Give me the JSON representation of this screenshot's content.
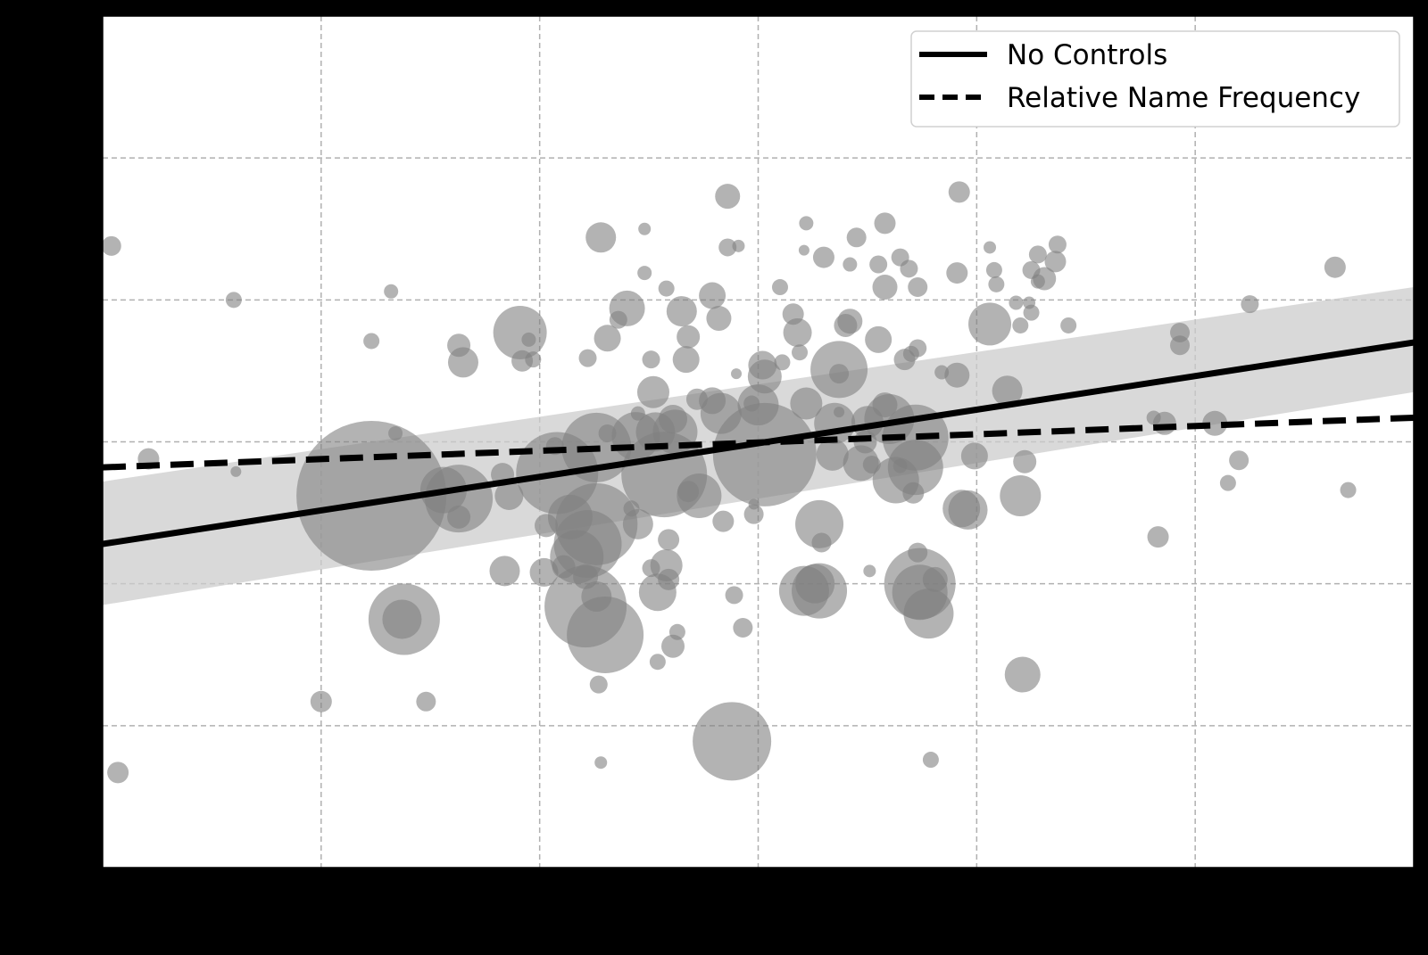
{
  "chart_data": {
    "type": "scatter",
    "title": "",
    "xlabel": "",
    "ylabel": "",
    "xlim": [
      -3,
      3
    ],
    "ylim": [
      -3,
      3
    ],
    "xticks": [
      -2,
      -1,
      0,
      1,
      2
    ],
    "yticks": [
      -2,
      -1,
      0,
      1,
      2
    ],
    "grid": true,
    "legend": {
      "position": "top-right",
      "entries": [
        {
          "label": "No Controls",
          "style": "solid"
        },
        {
          "label": "Relative Name Frequency",
          "style": "dashed"
        }
      ]
    },
    "fit_lines": [
      {
        "name": "No Controls",
        "style": "solid",
        "color": "#000000",
        "y_at_xmin": -0.72,
        "y_at_xmax": 0.7
      },
      {
        "name": "Relative Name Frequency",
        "style": "dashed",
        "color": "#000000",
        "y_at_xmin": -0.18,
        "y_at_xmax": 0.17
      }
    ],
    "confidence_band": {
      "color": "#cccccc",
      "lower_at_xmin": -1.15,
      "upper_at_xmin": -0.28,
      "lower_at_xmax": 0.35,
      "upper_at_xmax": 1.09
    },
    "point_color": "#808080",
    "point_alpha": 0.6,
    "points": [
      {
        "x": -2.96,
        "y": 1.38,
        "size": 11
      },
      {
        "x": -2.93,
        "y": -2.33,
        "size": 12
      },
      {
        "x": -2.79,
        "y": -0.12,
        "size": 12
      },
      {
        "x": -2.39,
        "y": -0.21,
        "size": 6
      },
      {
        "x": -2.4,
        "y": 1.0,
        "size": 9
      },
      {
        "x": -1.77,
        "y": 0.71,
        "size": 9
      },
      {
        "x": -1.68,
        "y": 1.06,
        "size": 8
      },
      {
        "x": -1.66,
        "y": 0.06,
        "size": 8
      },
      {
        "x": -1.77,
        "y": -0.38,
        "size": 84
      },
      {
        "x": -2.0,
        "y": -1.83,
        "size": 12
      },
      {
        "x": -1.52,
        "y": -1.83,
        "size": 11
      },
      {
        "x": -1.62,
        "y": -1.25,
        "size": 40
      },
      {
        "x": -1.63,
        "y": -1.25,
        "size": 22
      },
      {
        "x": -1.37,
        "y": 0.68,
        "size": 13
      },
      {
        "x": -1.35,
        "y": 0.56,
        "size": 17
      },
      {
        "x": -1.37,
        "y": -0.4,
        "size": 38
      },
      {
        "x": -1.44,
        "y": -0.34,
        "size": 26
      },
      {
        "x": -1.37,
        "y": -0.53,
        "size": 13
      },
      {
        "x": -1.17,
        "y": -0.23,
        "size": 13
      },
      {
        "x": -1.14,
        "y": -0.38,
        "size": 16
      },
      {
        "x": -1.16,
        "y": -0.91,
        "size": 17
      },
      {
        "x": -1.08,
        "y": 0.57,
        "size": 12
      },
      {
        "x": -1.03,
        "y": 0.58,
        "size": 9
      },
      {
        "x": -1.05,
        "y": 0.72,
        "size": 8
      },
      {
        "x": -1.09,
        "y": 0.77,
        "size": 30
      },
      {
        "x": -0.97,
        "y": -0.59,
        "size": 13
      },
      {
        "x": -0.98,
        "y": -0.92,
        "size": 16
      },
      {
        "x": -0.93,
        "y": -0.03,
        "size": 10
      },
      {
        "x": -0.92,
        "y": -0.22,
        "size": 46
      },
      {
        "x": -0.89,
        "y": -0.88,
        "size": 13
      },
      {
        "x": -0.86,
        "y": -0.53,
        "size": 25
      },
      {
        "x": -0.83,
        "y": -0.81,
        "size": 30
      },
      {
        "x": -0.79,
        "y": -1.16,
        "size": 46
      },
      {
        "x": -0.72,
        "y": 1.44,
        "size": 17
      },
      {
        "x": -0.78,
        "y": 0.59,
        "size": 10
      },
      {
        "x": -0.69,
        "y": 0.73,
        "size": 15
      },
      {
        "x": -0.74,
        "y": -0.04,
        "size": 39
      },
      {
        "x": -0.74,
        "y": -0.58,
        "size": 46
      },
      {
        "x": -0.78,
        "y": -0.72,
        "size": 38
      },
      {
        "x": -0.79,
        "y": -0.95,
        "size": 14
      },
      {
        "x": -0.74,
        "y": -1.09,
        "size": 17
      },
      {
        "x": -0.7,
        "y": -1.36,
        "size": 43
      },
      {
        "x": -0.73,
        "y": -1.71,
        "size": 10
      },
      {
        "x": -0.72,
        "y": -2.26,
        "size": 7
      },
      {
        "x": -0.69,
        "y": 0.06,
        "size": 10
      },
      {
        "x": -0.64,
        "y": 0.86,
        "size": 10
      },
      {
        "x": -0.6,
        "y": 0.94,
        "size": 20
      },
      {
        "x": -0.56,
        "y": 0.04,
        "size": 27
      },
      {
        "x": -0.55,
        "y": -0.58,
        "size": 17
      },
      {
        "x": -0.58,
        "y": -0.47,
        "size": 9
      },
      {
        "x": -0.52,
        "y": 1.5,
        "size": 7
      },
      {
        "x": -0.52,
        "y": 1.19,
        "size": 8
      },
      {
        "x": -0.49,
        "y": 0.58,
        "size": 10
      },
      {
        "x": -0.48,
        "y": 0.35,
        "size": 18
      },
      {
        "x": -0.55,
        "y": 0.2,
        "size": 8
      },
      {
        "x": -0.47,
        "y": 0.07,
        "size": 22
      },
      {
        "x": -0.49,
        "y": -0.89,
        "size": 10
      },
      {
        "x": -0.46,
        "y": -1.06,
        "size": 21
      },
      {
        "x": -0.43,
        "y": -0.23,
        "size": 48
      },
      {
        "x": -0.46,
        "y": -1.55,
        "size": 9
      },
      {
        "x": -0.42,
        "y": 1.08,
        "size": 9
      },
      {
        "x": -0.39,
        "y": 0.16,
        "size": 16
      },
      {
        "x": -0.38,
        "y": 0.07,
        "size": 25
      },
      {
        "x": -0.42,
        "y": -0.87,
        "size": 18
      },
      {
        "x": -0.41,
        "y": -0.69,
        "size": 12
      },
      {
        "x": -0.41,
        "y": -0.97,
        "size": 12
      },
      {
        "x": -0.39,
        "y": -1.44,
        "size": 13
      },
      {
        "x": -0.35,
        "y": 0.92,
        "size": 17
      },
      {
        "x": -0.32,
        "y": 0.74,
        "size": 13
      },
      {
        "x": -0.33,
        "y": 0.58,
        "size": 15
      },
      {
        "x": -0.28,
        "y": 0.3,
        "size": 12
      },
      {
        "x": -0.32,
        "y": -0.35,
        "size": 12
      },
      {
        "x": -0.27,
        "y": -0.38,
        "size": 25
      },
      {
        "x": -0.37,
        "y": -1.34,
        "size": 9
      },
      {
        "x": -0.21,
        "y": 1.03,
        "size": 15
      },
      {
        "x": -0.21,
        "y": 0.29,
        "size": 15
      },
      {
        "x": -0.18,
        "y": 0.87,
        "size": 14
      },
      {
        "x": -0.17,
        "y": 0.2,
        "size": 23
      },
      {
        "x": -0.14,
        "y": 1.73,
        "size": 14
      },
      {
        "x": -0.14,
        "y": 1.37,
        "size": 10
      },
      {
        "x": -0.16,
        "y": -0.56,
        "size": 12
      },
      {
        "x": -0.12,
        "y": -2.11,
        "size": 44
      },
      {
        "x": -0.1,
        "y": 0.48,
        "size": 6
      },
      {
        "x": -0.09,
        "y": 1.38,
        "size": 7
      },
      {
        "x": -0.11,
        "y": -1.08,
        "size": 10
      },
      {
        "x": -0.07,
        "y": -1.31,
        "size": 11
      },
      {
        "x": 0.0,
        "y": 0.26,
        "size": 23
      },
      {
        "x": 0.02,
        "y": 0.54,
        "size": 16
      },
      {
        "x": 0.03,
        "y": 0.46,
        "size": 19
      },
      {
        "x": 0.03,
        "y": -0.09,
        "size": 58
      },
      {
        "x": -0.03,
        "y": 0.27,
        "size": 9
      },
      {
        "x": -0.02,
        "y": -0.44,
        "size": 6
      },
      {
        "x": -0.02,
        "y": -0.51,
        "size": 11
      },
      {
        "x": 0.1,
        "y": 1.09,
        "size": 9
      },
      {
        "x": 0.11,
        "y": 0.56,
        "size": 9
      },
      {
        "x": 0.16,
        "y": 0.9,
        "size": 12
      },
      {
        "x": 0.19,
        "y": 0.63,
        "size": 9
      },
      {
        "x": 0.21,
        "y": 1.35,
        "size": 6
      },
      {
        "x": 0.22,
        "y": 1.54,
        "size": 8
      },
      {
        "x": 0.18,
        "y": 0.77,
        "size": 16
      },
      {
        "x": 0.22,
        "y": 0.27,
        "size": 18
      },
      {
        "x": 0.3,
        "y": 1.3,
        "size": 12
      },
      {
        "x": 0.28,
        "y": -0.58,
        "size": 27
      },
      {
        "x": 0.21,
        "y": -1.05,
        "size": 28
      },
      {
        "x": 0.28,
        "y": -1.05,
        "size": 31
      },
      {
        "x": 0.29,
        "y": -0.71,
        "size": 11
      },
      {
        "x": 0.26,
        "y": -1.0,
        "size": 22
      },
      {
        "x": 0.34,
        "y": -0.09,
        "size": 18
      },
      {
        "x": 0.35,
        "y": 0.13,
        "size": 23
      },
      {
        "x": 0.4,
        "y": 0.82,
        "size": 13
      },
      {
        "x": 0.37,
        "y": 0.48,
        "size": 11
      },
      {
        "x": 0.37,
        "y": 0.51,
        "size": 32
      },
      {
        "x": 0.42,
        "y": 1.25,
        "size": 8
      },
      {
        "x": 0.42,
        "y": 0.85,
        "size": 14
      },
      {
        "x": 0.37,
        "y": 0.21,
        "size": 6
      },
      {
        "x": 0.47,
        "y": -0.15,
        "size": 20
      },
      {
        "x": 0.49,
        "y": 0.0,
        "size": 13
      },
      {
        "x": 0.45,
        "y": 1.44,
        "size": 11
      },
      {
        "x": 0.5,
        "y": 0.14,
        "size": 18
      },
      {
        "x": 0.52,
        "y": -0.16,
        "size": 10
      },
      {
        "x": 0.55,
        "y": 0.72,
        "size": 15
      },
      {
        "x": 0.51,
        "y": -0.91,
        "size": 7
      },
      {
        "x": 0.58,
        "y": 1.54,
        "size": 12
      },
      {
        "x": 0.55,
        "y": 1.25,
        "size": 10
      },
      {
        "x": 0.58,
        "y": 1.09,
        "size": 14
      },
      {
        "x": 0.58,
        "y": 0.26,
        "size": 14
      },
      {
        "x": 0.63,
        "y": -0.27,
        "size": 26
      },
      {
        "x": 0.6,
        "y": 0.16,
        "size": 28
      },
      {
        "x": 0.69,
        "y": 1.22,
        "size": 10
      },
      {
        "x": 0.65,
        "y": 1.3,
        "size": 10
      },
      {
        "x": 0.65,
        "y": -0.17,
        "size": 8
      },
      {
        "x": 0.71,
        "y": -0.36,
        "size": 12
      },
      {
        "x": 0.67,
        "y": 0.58,
        "size": 12
      },
      {
        "x": 0.7,
        "y": 0.62,
        "size": 9
      },
      {
        "x": 0.73,
        "y": 0.66,
        "size": 10
      },
      {
        "x": 0.73,
        "y": 1.09,
        "size": 11
      },
      {
        "x": 0.72,
        "y": -0.18,
        "size": 31
      },
      {
        "x": 0.72,
        "y": 0.03,
        "size": 37
      },
      {
        "x": 0.74,
        "y": -1.0,
        "size": 40
      },
      {
        "x": 0.74,
        "y": -1.06,
        "size": 31
      },
      {
        "x": 0.73,
        "y": -0.78,
        "size": 11
      },
      {
        "x": 0.78,
        "y": -1.21,
        "size": 28
      },
      {
        "x": 0.79,
        "y": -2.24,
        "size": 9
      },
      {
        "x": 0.81,
        "y": -0.97,
        "size": 14
      },
      {
        "x": 0.84,
        "y": 0.49,
        "size": 8
      },
      {
        "x": 0.92,
        "y": 1.76,
        "size": 12
      },
      {
        "x": 0.91,
        "y": 1.19,
        "size": 12
      },
      {
        "x": 0.91,
        "y": 0.47,
        "size": 14
      },
      {
        "x": 0.93,
        "y": -0.47,
        "size": 21
      },
      {
        "x": 0.96,
        "y": -0.48,
        "size": 22
      },
      {
        "x": 0.99,
        "y": -0.1,
        "size": 15
      },
      {
        "x": 1.06,
        "y": 1.37,
        "size": 7
      },
      {
        "x": 1.09,
        "y": 1.11,
        "size": 9
      },
      {
        "x": 1.08,
        "y": 1.21,
        "size": 9
      },
      {
        "x": 1.06,
        "y": 0.83,
        "size": 24
      },
      {
        "x": 1.14,
        "y": 0.36,
        "size": 17
      },
      {
        "x": 1.18,
        "y": 0.98,
        "size": 8
      },
      {
        "x": 1.2,
        "y": 0.82,
        "size": 9
      },
      {
        "x": 1.22,
        "y": -0.14,
        "size": 13
      },
      {
        "x": 1.2,
        "y": -0.38,
        "size": 23
      },
      {
        "x": 1.25,
        "y": 0.91,
        "size": 9
      },
      {
        "x": 1.28,
        "y": 1.32,
        "size": 10
      },
      {
        "x": 1.31,
        "y": 1.15,
        "size": 13
      },
      {
        "x": 1.36,
        "y": 1.27,
        "size": 12
      },
      {
        "x": 1.37,
        "y": 1.39,
        "size": 10
      },
      {
        "x": 1.42,
        "y": 0.82,
        "size": 9
      },
      {
        "x": 1.24,
        "y": 0.98,
        "size": 7
      },
      {
        "x": 1.25,
        "y": 1.21,
        "size": 10
      },
      {
        "x": 1.28,
        "y": 1.13,
        "size": 8
      },
      {
        "x": 1.21,
        "y": -1.64,
        "size": 20
      },
      {
        "x": 1.83,
        "y": -0.67,
        "size": 12
      },
      {
        "x": 1.81,
        "y": 0.17,
        "size": 8
      },
      {
        "x": 1.86,
        "y": 0.13,
        "size": 13
      },
      {
        "x": 1.93,
        "y": 0.68,
        "size": 11
      },
      {
        "x": 1.93,
        "y": 0.77,
        "size": 11
      },
      {
        "x": 2.09,
        "y": 0.13,
        "size": 14
      },
      {
        "x": 2.15,
        "y": -0.29,
        "size": 9
      },
      {
        "x": 2.2,
        "y": -0.13,
        "size": 11
      },
      {
        "x": 2.25,
        "y": 0.97,
        "size": 10
      },
      {
        "x": 2.64,
        "y": 1.23,
        "size": 12
      },
      {
        "x": 2.7,
        "y": -0.34,
        "size": 9
      }
    ]
  },
  "legend_samples": {
    "solid": "No Controls",
    "dashed": "Relative Name Frequency"
  }
}
